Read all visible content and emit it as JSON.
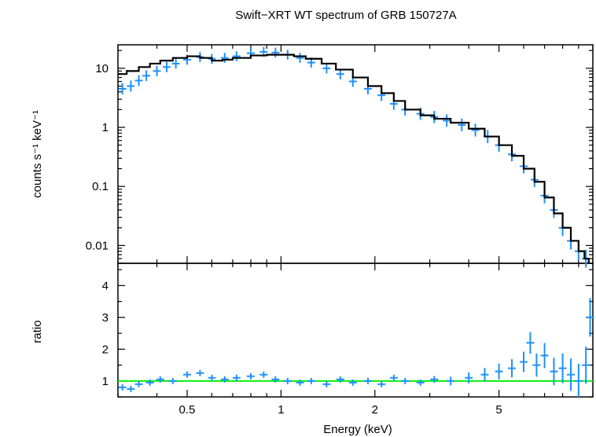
{
  "chart_data": [
    {
      "type": "scatter",
      "panel": "spectrum",
      "title": "Swift−XRT WT spectrum of GRB 150727A",
      "xlabel": "Energy (keV)",
      "ylabel": "counts s⁻¹ keV⁻¹",
      "x_scale": "log",
      "y_scale": "log",
      "xlim": [
        0.3,
        10
      ],
      "ylim": [
        0.005,
        25
      ],
      "x_ticks": [
        0.5,
        1,
        2,
        5
      ],
      "x_tick_labels": [
        "0.5",
        "1",
        "2",
        "5"
      ],
      "y_ticks": [
        0.01,
        0.1,
        1,
        10
      ],
      "y_tick_labels": [
        "0.01",
        "0.1",
        "1",
        "10"
      ],
      "grid": false,
      "series": [
        {
          "kind": "data",
          "color": "#1e90ff",
          "x": [
            0.31,
            0.33,
            0.35,
            0.37,
            0.4,
            0.43,
            0.46,
            0.5,
            0.55,
            0.6,
            0.66,
            0.72,
            0.8,
            0.88,
            0.96,
            1.05,
            1.15,
            1.25,
            1.4,
            1.55,
            1.7,
            1.9,
            2.1,
            2.3,
            2.5,
            2.8,
            3.1,
            3.4,
            3.8,
            4.2,
            4.6,
            5.0,
            5.5,
            6.0,
            6.5,
            7.0,
            7.5,
            8.0,
            8.5,
            9.0,
            9.5
          ],
          "y": [
            4.5,
            5.0,
            6.2,
            7.5,
            9.0,
            10.5,
            12.0,
            14.0,
            15.5,
            14.5,
            15.0,
            16.0,
            18.0,
            19.0,
            18.5,
            17.0,
            15.0,
            12.5,
            10.0,
            8.0,
            6.0,
            4.5,
            3.5,
            2.5,
            2.0,
            1.7,
            1.5,
            1.3,
            1.1,
            0.9,
            0.7,
            0.5,
            0.35,
            0.22,
            0.13,
            0.07,
            0.04,
            0.02,
            0.012,
            0.008,
            0.006
          ]
        },
        {
          "kind": "model",
          "color": "#000000",
          "x": [
            0.3,
            0.32,
            0.35,
            0.38,
            0.41,
            0.45,
            0.5,
            0.55,
            0.6,
            0.65,
            0.7,
            0.8,
            0.9,
            1.0,
            1.1,
            1.2,
            1.35,
            1.5,
            1.7,
            1.9,
            2.1,
            2.3,
            2.5,
            2.8,
            3.1,
            3.5,
            4.0,
            4.5,
            5.0,
            5.5,
            6.0,
            6.5,
            7.0,
            7.5,
            8.0,
            8.5,
            9.0,
            9.4,
            9.7
          ],
          "y": [
            8.0,
            9.0,
            10.5,
            12.0,
            13.5,
            15.0,
            16.0,
            15.0,
            13.5,
            14.0,
            15.0,
            16.5,
            17.0,
            17.0,
            16.0,
            14.5,
            12.0,
            9.5,
            7.0,
            5.0,
            3.8,
            2.8,
            2.0,
            1.6,
            1.4,
            1.2,
            0.95,
            0.7,
            0.5,
            0.33,
            0.2,
            0.12,
            0.065,
            0.035,
            0.02,
            0.012,
            0.008,
            0.006,
            0.005
          ]
        }
      ]
    },
    {
      "type": "scatter",
      "panel": "ratio",
      "xlabel": "Energy (keV)",
      "ylabel": "ratio",
      "x_scale": "log",
      "y_scale": "linear",
      "xlim": [
        0.3,
        10
      ],
      "ylim": [
        0.5,
        4.7
      ],
      "y_ticks": [
        1,
        2,
        3,
        4
      ],
      "y_tick_labels": [
        "1",
        "2",
        "3",
        "4"
      ],
      "reference_line": {
        "y": 1,
        "color": "#00ee00"
      },
      "series": [
        {
          "kind": "ratio",
          "color": "#1e90ff",
          "x": [
            0.31,
            0.33,
            0.35,
            0.38,
            0.41,
            0.45,
            0.5,
            0.55,
            0.6,
            0.66,
            0.72,
            0.8,
            0.88,
            0.96,
            1.05,
            1.15,
            1.25,
            1.4,
            1.55,
            1.7,
            1.9,
            2.1,
            2.3,
            2.5,
            2.8,
            3.1,
            3.5,
            4.0,
            4.5,
            5.0,
            5.5,
            6.0,
            6.3,
            6.6,
            7.0,
            7.5,
            8.0,
            8.5,
            9.0,
            9.5,
            9.8
          ],
          "y": [
            0.8,
            0.75,
            0.9,
            0.95,
            1.05,
            1.0,
            1.2,
            1.25,
            1.1,
            1.05,
            1.1,
            1.15,
            1.2,
            1.05,
            1.0,
            0.95,
            1.0,
            0.9,
            1.05,
            0.95,
            1.0,
            0.9,
            1.1,
            1.0,
            0.95,
            1.05,
            1.0,
            1.1,
            1.2,
            1.3,
            1.4,
            1.6,
            2.2,
            1.5,
            1.8,
            1.3,
            1.4,
            1.2,
            1.0,
            1.5,
            3.0
          ]
        }
      ]
    }
  ]
}
